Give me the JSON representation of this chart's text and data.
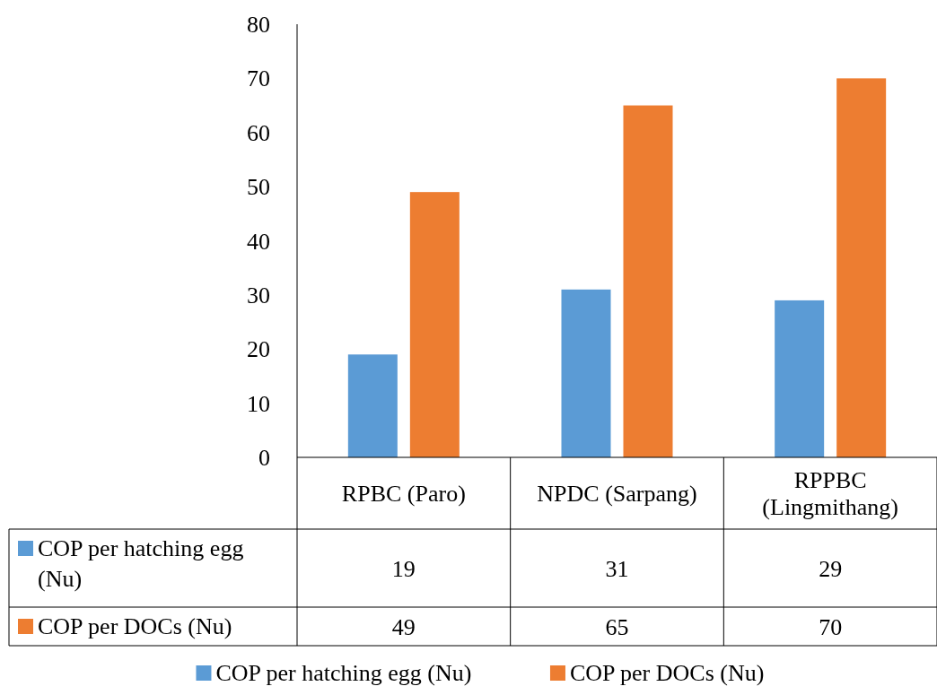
{
  "chart_data": {
    "type": "bar",
    "categories": [
      "RPBC (Paro)",
      "NPDC (Sarpang)",
      "RPPBC (Lingmithang)"
    ],
    "series": [
      {
        "name": "COP per hatching egg (Nu)",
        "color": "#5b9bd5",
        "values": [
          19,
          31,
          29
        ]
      },
      {
        "name": "COP per DOCs (Nu)",
        "color": "#ed7d31",
        "values": [
          49,
          65,
          70
        ]
      }
    ],
    "ylim": [
      0,
      80
    ],
    "yticks": [
      0,
      10,
      20,
      30,
      40,
      50,
      60,
      70,
      80
    ],
    "data_labels": true,
    "legend": "bottom",
    "grid": false
  }
}
